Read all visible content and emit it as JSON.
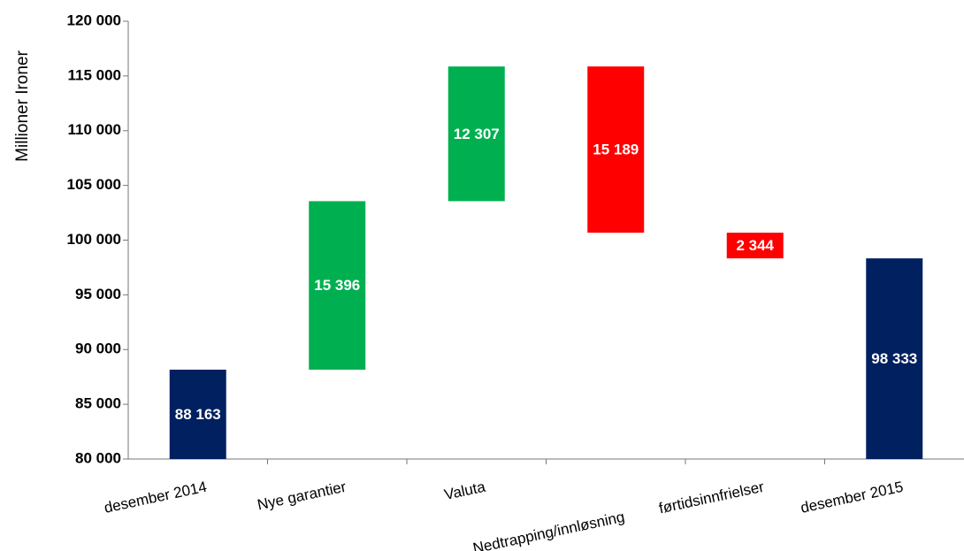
{
  "chart_data": {
    "type": "waterfall",
    "y_label": "Millioner Ironer",
    "categories": [
      "desember 2014",
      "Nye garantier",
      "Valuta",
      "Nedtrapping/innløsning",
      "førtidsinnfrielser",
      "desember 2015"
    ],
    "values": [
      88163,
      15396,
      12307,
      15189,
      2344,
      98333
    ],
    "value_labels": [
      "88 163",
      "15 396",
      "12 307",
      "15 189",
      "2 344",
      "98 333"
    ],
    "measure": [
      "total",
      "increase",
      "increase",
      "decrease",
      "decrease",
      "total"
    ],
    "colors": {
      "total": "#002060",
      "increase": "#00b050",
      "decrease": "#ff0000"
    },
    "ylim": [
      80000,
      120000
    ],
    "yticks": [
      {
        "value": 80000,
        "label": "80 000"
      },
      {
        "value": 85000,
        "label": "85 000"
      },
      {
        "value": 90000,
        "label": "90 000"
      },
      {
        "value": 95000,
        "label": "95 000"
      },
      {
        "value": 100000,
        "label": "100 000"
      },
      {
        "value": 105000,
        "label": "105 000"
      },
      {
        "value": 110000,
        "label": "110 000"
      },
      {
        "value": 115000,
        "label": "115 000"
      },
      {
        "value": 120000,
        "label": "120 000"
      }
    ],
    "grid": false
  }
}
